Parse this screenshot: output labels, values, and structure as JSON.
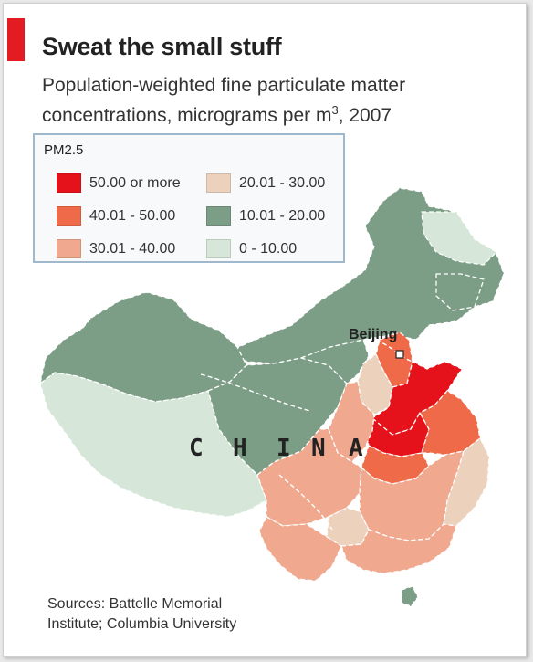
{
  "title": "Sweat the small stuff",
  "subtitle_line1": "Population-weighted fine particulate matter",
  "subtitle_line2_before": "concentrations, micrograms per m",
  "subtitle_sup": "3",
  "subtitle_line2_after": ", 2007",
  "legend": {
    "title": "PM2.5",
    "items": [
      {
        "label": "50.00 or more",
        "color": "#e6121b"
      },
      {
        "label": "40.01 - 50.00",
        "color": "#ee6a48"
      },
      {
        "label": "30.01 - 40.00",
        "color": "#f0a88f"
      },
      {
        "label": "20.01 - 30.00",
        "color": "#ecd1bd"
      },
      {
        "label": "10.01 - 20.00",
        "color": "#7c9d86"
      },
      {
        "label": "0 - 10.00",
        "color": "#d6e6d9"
      }
    ]
  },
  "map": {
    "beijing_label": "Beijing",
    "country_letters": [
      "C",
      "H",
      "I",
      "N",
      "A"
    ],
    "colors": {
      "border": "#ffffff",
      "sea": "#ffffff"
    }
  },
  "sources_line1": "Sources: Battelle Memorial",
  "sources_line2": "Institute; Columbia University"
}
